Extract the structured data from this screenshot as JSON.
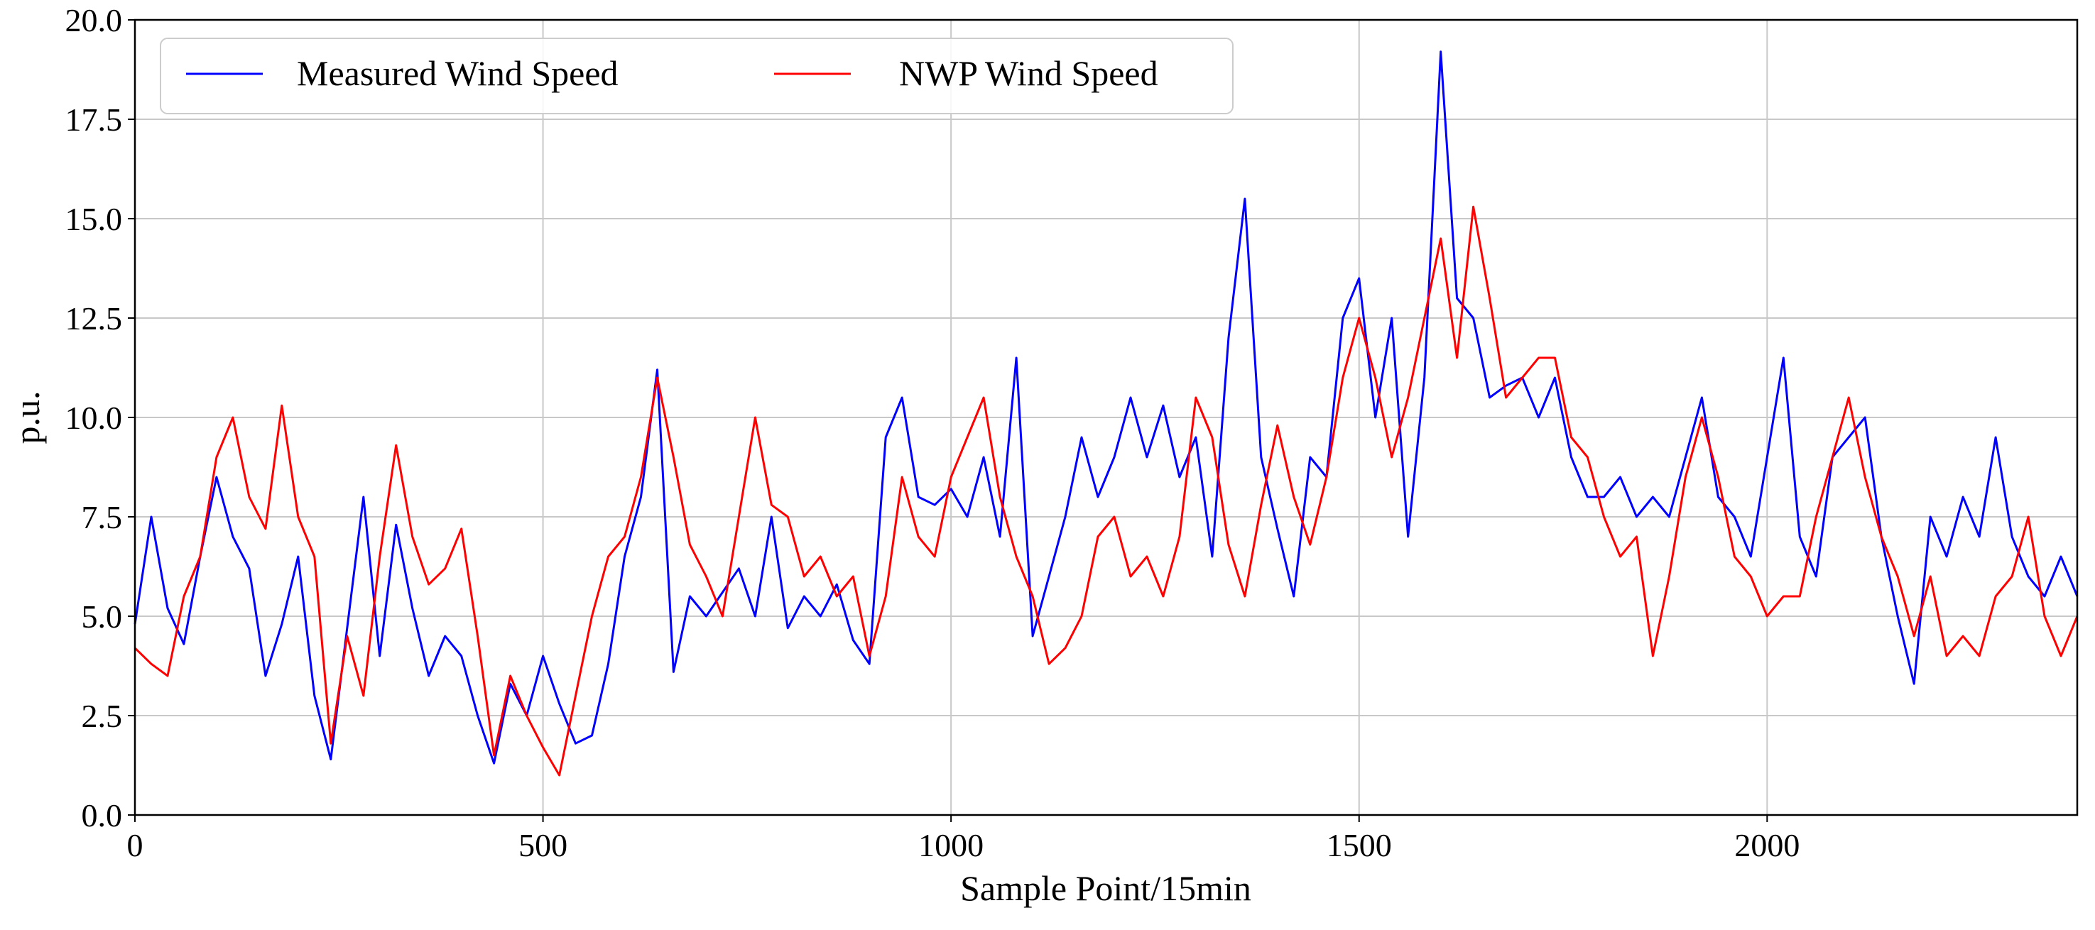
{
  "chart_data": {
    "type": "line",
    "title": "",
    "xlabel": "Sample Point/15min",
    "ylabel": "p.u.",
    "xlim": [
      0,
      2380
    ],
    "ylim": [
      0,
      20
    ],
    "xticks": [
      0,
      500,
      1000,
      1500,
      2000
    ],
    "xtick_labels": [
      "0",
      "500",
      "1000",
      "1500",
      "2000"
    ],
    "yticks": [
      0,
      2.5,
      5,
      7.5,
      10,
      12.5,
      15,
      17.5,
      20
    ],
    "ytick_labels": [
      "0.0",
      "2.5",
      "5.0",
      "7.5",
      "10.0",
      "12.5",
      "15.0",
      "17.5",
      "20.0"
    ],
    "grid": true,
    "legend_position": "top-left",
    "series": [
      {
        "name": "Measured Wind Speed",
        "color": "#0000ff",
        "x": [
          0,
          20,
          40,
          60,
          80,
          100,
          120,
          140,
          160,
          180,
          200,
          220,
          240,
          260,
          280,
          300,
          320,
          340,
          360,
          380,
          400,
          420,
          440,
          460,
          480,
          500,
          520,
          540,
          560,
          580,
          600,
          620,
          640,
          660,
          680,
          700,
          720,
          740,
          760,
          780,
          800,
          820,
          840,
          860,
          880,
          900,
          920,
          940,
          960,
          980,
          1000,
          1020,
          1040,
          1060,
          1080,
          1100,
          1120,
          1140,
          1160,
          1180,
          1200,
          1220,
          1240,
          1260,
          1280,
          1300,
          1320,
          1340,
          1360,
          1380,
          1400,
          1420,
          1440,
          1460,
          1480,
          1500,
          1520,
          1540,
          1560,
          1580,
          1600,
          1620,
          1640,
          1660,
          1680,
          1700,
          1720,
          1740,
          1760,
          1780,
          1800,
          1820,
          1840,
          1860,
          1880,
          1900,
          1920,
          1940,
          1960,
          1980,
          2000,
          2020,
          2040,
          2060,
          2080,
          2100,
          2120,
          2140,
          2160,
          2180,
          2200,
          2220,
          2240,
          2260,
          2280,
          2300,
          2320,
          2340,
          2360,
          2380
        ],
        "values": [
          4.8,
          7.5,
          5.2,
          4.3,
          6.5,
          8.5,
          7.0,
          6.2,
          3.5,
          4.8,
          6.5,
          3.0,
          1.4,
          4.7,
          8.0,
          4.0,
          7.3,
          5.2,
          3.5,
          4.5,
          4.0,
          2.5,
          1.3,
          3.3,
          2.5,
          4.0,
          2.8,
          1.8,
          2.0,
          3.8,
          6.5,
          8.0,
          11.2,
          3.6,
          5.5,
          5.0,
          5.6,
          6.2,
          5.0,
          7.5,
          4.7,
          5.5,
          5.0,
          5.8,
          4.4,
          3.8,
          9.5,
          10.5,
          8.0,
          7.8,
          8.2,
          7.5,
          9.0,
          7.0,
          11.5,
          4.5,
          6.0,
          7.5,
          9.5,
          8.0,
          9.0,
          10.5,
          9.0,
          10.3,
          8.5,
          9.5,
          6.5,
          12.0,
          15.5,
          9.0,
          7.2,
          5.5,
          9.0,
          8.5,
          12.5,
          13.5,
          10.0,
          12.5,
          7.0,
          11.0,
          19.2,
          13.0,
          12.5,
          10.5,
          10.8,
          11.0,
          10.0,
          11.0,
          9.0,
          8.0,
          8.0,
          8.5,
          7.5,
          8.0,
          7.5,
          9.0,
          10.5,
          8.0,
          7.5,
          6.5,
          9.0,
          11.5,
          7.0,
          6.0,
          9.0,
          9.5,
          10.0,
          7.0,
          5.0,
          3.3,
          7.5,
          6.5,
          8.0,
          7.0,
          9.5,
          7.0,
          6.0,
          5.5,
          6.5,
          5.5
        ]
      },
      {
        "name": "NWP Wind Speed",
        "color": "#ff0000",
        "x": [
          0,
          20,
          40,
          60,
          80,
          100,
          120,
          140,
          160,
          180,
          200,
          220,
          240,
          260,
          280,
          300,
          320,
          340,
          360,
          380,
          400,
          420,
          440,
          460,
          480,
          500,
          520,
          540,
          560,
          580,
          600,
          620,
          640,
          660,
          680,
          700,
          720,
          740,
          760,
          780,
          800,
          820,
          840,
          860,
          880,
          900,
          920,
          940,
          960,
          980,
          1000,
          1020,
          1040,
          1060,
          1080,
          1100,
          1120,
          1140,
          1160,
          1180,
          1200,
          1220,
          1240,
          1260,
          1280,
          1300,
          1320,
          1340,
          1360,
          1380,
          1400,
          1420,
          1440,
          1460,
          1480,
          1500,
          1520,
          1540,
          1560,
          1580,
          1600,
          1620,
          1640,
          1660,
          1680,
          1700,
          1720,
          1740,
          1760,
          1780,
          1800,
          1820,
          1840,
          1860,
          1880,
          1900,
          1920,
          1940,
          1960,
          1980,
          2000,
          2020,
          2040,
          2060,
          2080,
          2100,
          2120,
          2140,
          2160,
          2180,
          2200,
          2220,
          2240,
          2260,
          2280,
          2300,
          2320,
          2340,
          2360,
          2380
        ],
        "values": [
          4.2,
          3.8,
          3.5,
          5.5,
          6.5,
          9.0,
          10.0,
          8.0,
          7.2,
          10.3,
          7.5,
          6.5,
          1.8,
          4.5,
          3.0,
          6.5,
          9.3,
          7.0,
          5.8,
          6.2,
          7.2,
          4.5,
          1.5,
          3.5,
          2.5,
          1.7,
          1.0,
          3.0,
          5.0,
          6.5,
          7.0,
          8.5,
          11.0,
          9.0,
          6.8,
          6.0,
          5.0,
          7.5,
          10.0,
          7.8,
          7.5,
          6.0,
          6.5,
          5.5,
          6.0,
          4.0,
          5.5,
          8.5,
          7.0,
          6.5,
          8.5,
          9.5,
          10.5,
          8.0,
          6.5,
          5.5,
          3.8,
          4.2,
          5.0,
          7.0,
          7.5,
          6.0,
          6.5,
          5.5,
          7.0,
          10.5,
          9.5,
          6.8,
          5.5,
          7.8,
          9.8,
          8.0,
          6.8,
          8.5,
          11.0,
          12.5,
          11.0,
          9.0,
          10.5,
          12.5,
          14.5,
          11.5,
          15.3,
          13.0,
          10.5,
          11.0,
          11.5,
          11.5,
          9.5,
          9.0,
          7.5,
          6.5,
          7.0,
          4.0,
          6.0,
          8.5,
          10.0,
          8.5,
          6.5,
          6.0,
          5.0,
          5.5,
          5.5,
          7.5,
          9.0,
          10.5,
          8.5,
          7.0,
          6.0,
          4.5,
          6.0,
          4.0,
          4.5,
          4.0,
          5.5,
          6.0,
          7.5,
          5.0,
          4.0,
          5.0
        ]
      }
    ]
  }
}
